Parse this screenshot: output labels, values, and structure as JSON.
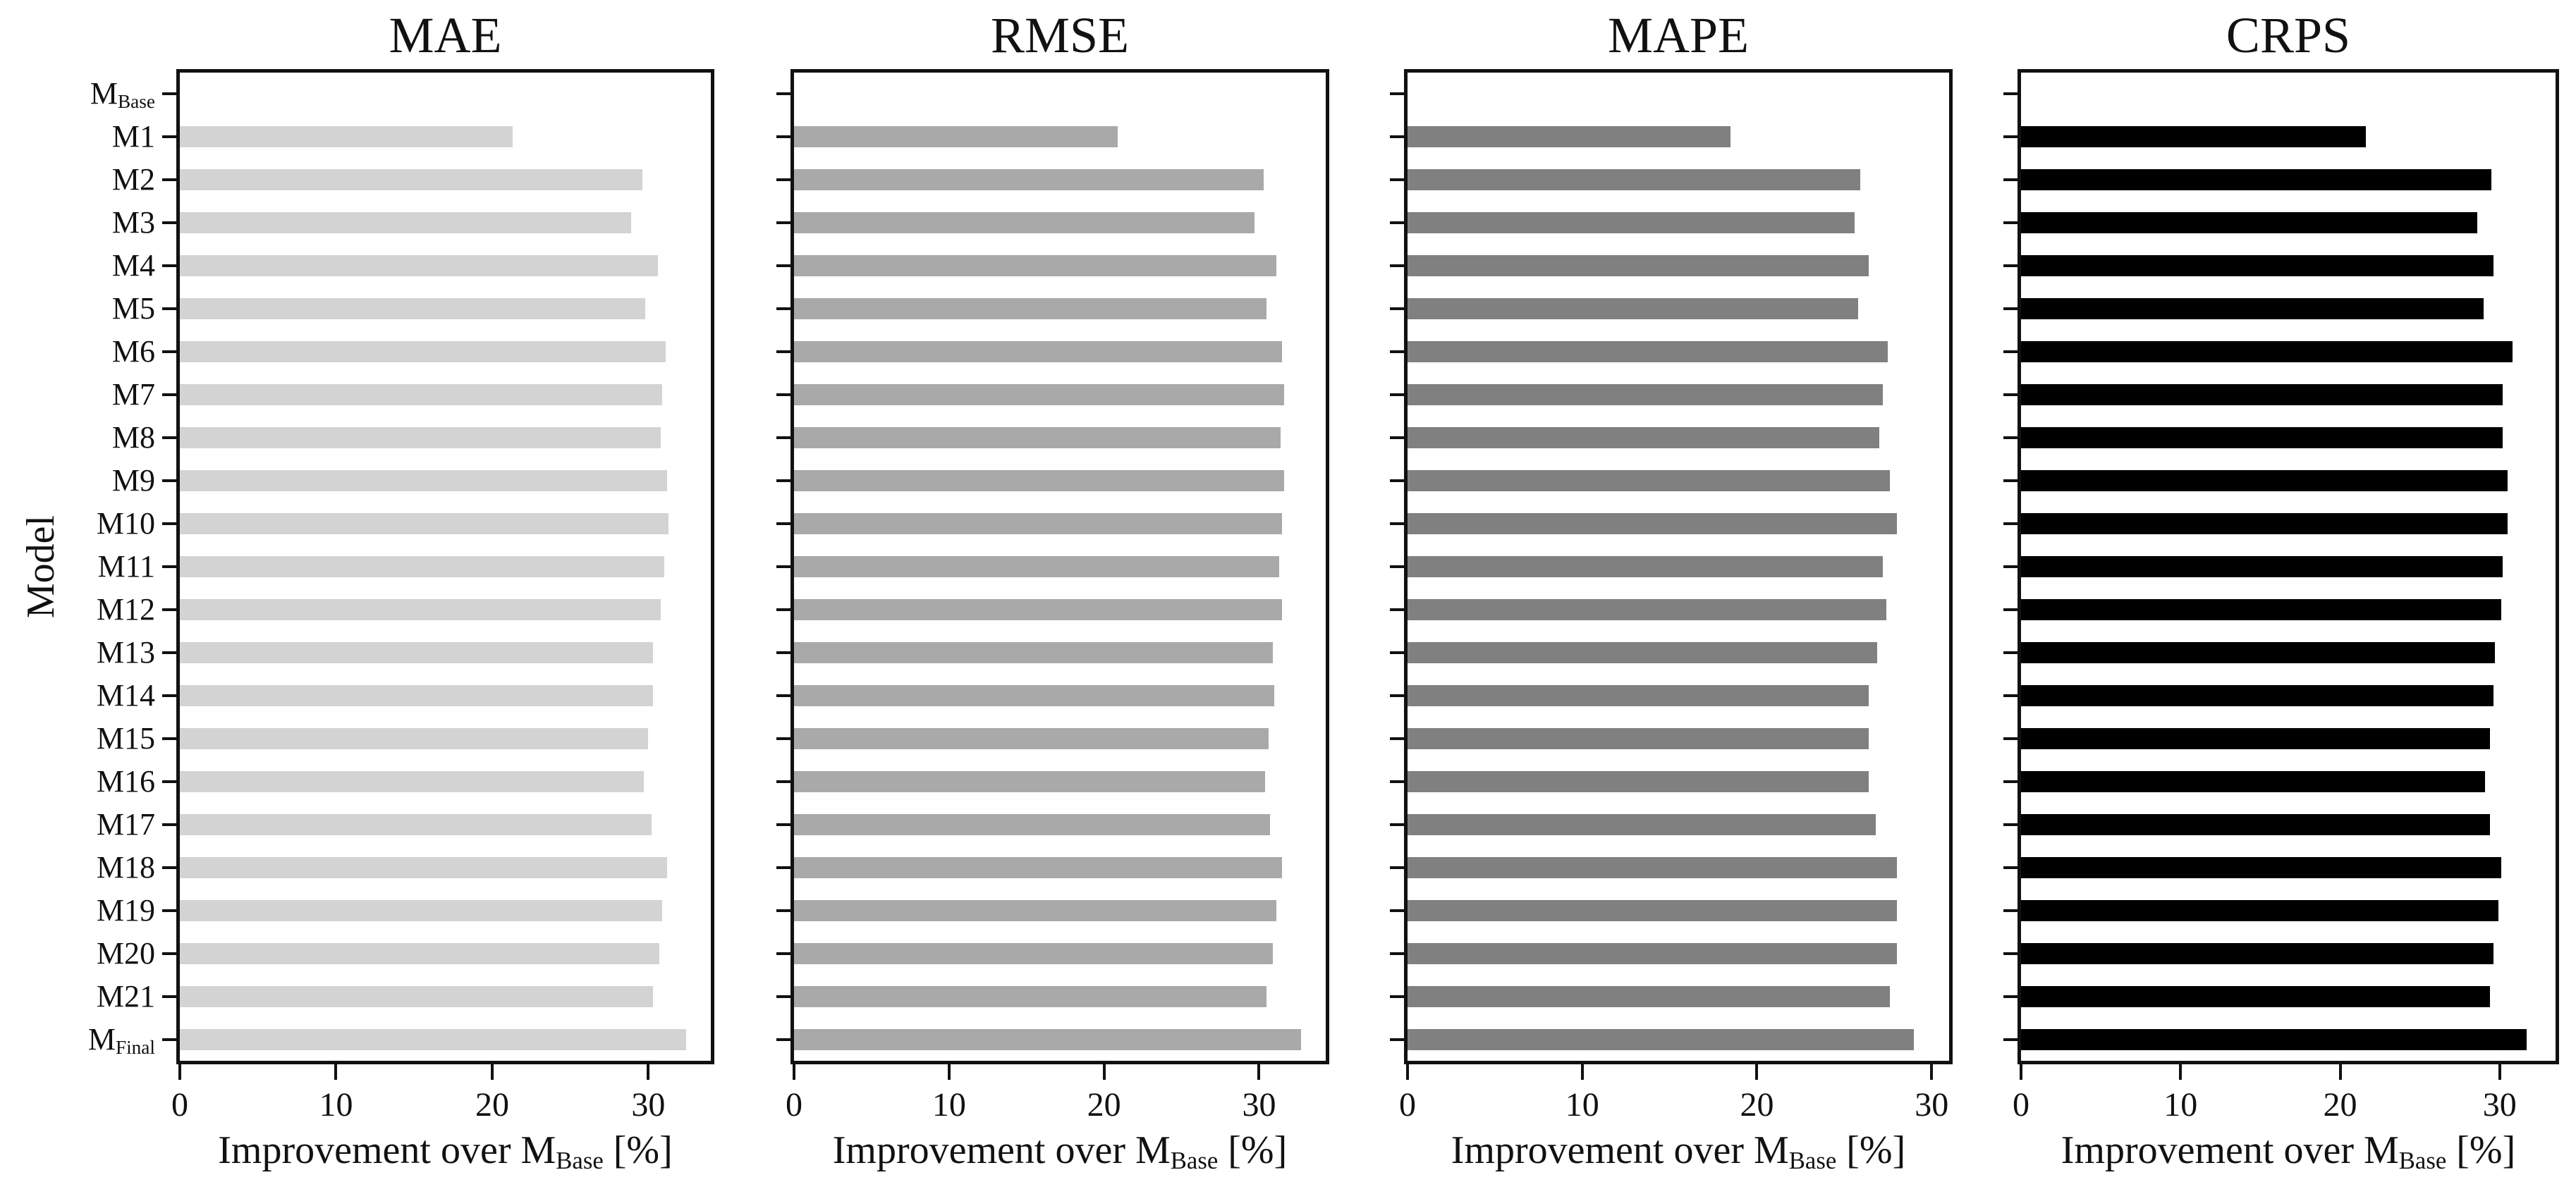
{
  "figure": {
    "ylabel": "Model",
    "xlabel": {
      "prefix": "Improvement over M",
      "sub": "Base",
      "suffix": " [%]"
    },
    "x_tick_values": [
      0,
      10,
      20,
      30
    ],
    "background_color": "#ffffff",
    "spine_color": "#111111"
  },
  "categories": [
    {
      "main": "M",
      "sub": "Base"
    },
    {
      "main": "M1",
      "sub": ""
    },
    {
      "main": "M2",
      "sub": ""
    },
    {
      "main": "M3",
      "sub": ""
    },
    {
      "main": "M4",
      "sub": ""
    },
    {
      "main": "M5",
      "sub": ""
    },
    {
      "main": "M6",
      "sub": ""
    },
    {
      "main": "M7",
      "sub": ""
    },
    {
      "main": "M8",
      "sub": ""
    },
    {
      "main": "M9",
      "sub": ""
    },
    {
      "main": "M10",
      "sub": ""
    },
    {
      "main": "M11",
      "sub": ""
    },
    {
      "main": "M12",
      "sub": ""
    },
    {
      "main": "M13",
      "sub": ""
    },
    {
      "main": "M14",
      "sub": ""
    },
    {
      "main": "M15",
      "sub": ""
    },
    {
      "main": "M16",
      "sub": ""
    },
    {
      "main": "M17",
      "sub": ""
    },
    {
      "main": "M18",
      "sub": ""
    },
    {
      "main": "M19",
      "sub": ""
    },
    {
      "main": "M20",
      "sub": ""
    },
    {
      "main": "M21",
      "sub": ""
    },
    {
      "main": "M",
      "sub": "Final"
    }
  ],
  "chart_data": [
    {
      "type": "bar",
      "orientation": "horizontal",
      "title": "MAE",
      "bar_color": "#d3d3d3",
      "xlim": [
        0,
        34.0
      ],
      "grid": false,
      "values": [
        0,
        21.3,
        29.6,
        28.9,
        30.6,
        29.8,
        31.1,
        30.9,
        30.8,
        31.2,
        31.3,
        31.0,
        30.8,
        30.3,
        30.3,
        30.0,
        29.7,
        30.2,
        31.2,
        30.9,
        30.7,
        30.3,
        32.4
      ]
    },
    {
      "type": "bar",
      "orientation": "horizontal",
      "title": "RMSE",
      "bar_color": "#a9a9a9",
      "xlim": [
        0,
        34.3
      ],
      "grid": false,
      "values": [
        0,
        20.9,
        30.3,
        29.7,
        31.1,
        30.5,
        31.5,
        31.6,
        31.4,
        31.6,
        31.5,
        31.3,
        31.5,
        30.9,
        31.0,
        30.6,
        30.4,
        30.7,
        31.5,
        31.1,
        30.9,
        30.5,
        32.7
      ]
    },
    {
      "type": "bar",
      "orientation": "horizontal",
      "title": "MAPE",
      "bar_color": "#808080",
      "xlim": [
        0,
        31.0
      ],
      "grid": false,
      "values": [
        0,
        18.5,
        25.9,
        25.6,
        26.4,
        25.8,
        27.5,
        27.2,
        27.0,
        27.6,
        28.0,
        27.2,
        27.4,
        26.9,
        26.4,
        26.4,
        26.4,
        26.8,
        28.0,
        28.0,
        28.0,
        27.6,
        29.0
      ]
    },
    {
      "type": "bar",
      "orientation": "horizontal",
      "title": "CRPS",
      "bar_color": "#000000",
      "xlim": [
        0,
        33.5
      ],
      "grid": false,
      "values": [
        0,
        21.6,
        29.5,
        28.6,
        29.6,
        29.0,
        30.8,
        30.2,
        30.2,
        30.5,
        30.5,
        30.2,
        30.1,
        29.7,
        29.6,
        29.4,
        29.1,
        29.4,
        30.1,
        29.9,
        29.6,
        29.4,
        31.7
      ]
    }
  ]
}
